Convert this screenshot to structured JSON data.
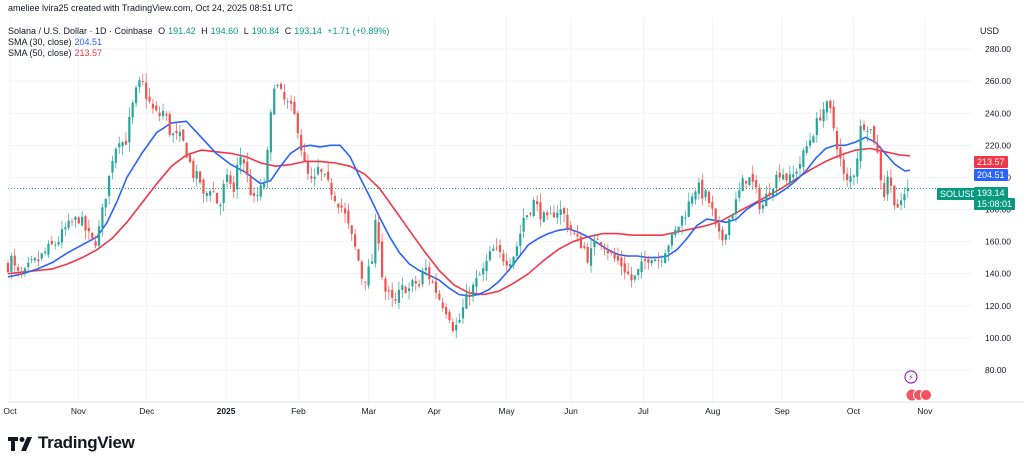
{
  "header": {
    "author_line": "ameliee lvira25 created with TradingView.com, Oct 24, 2025 08:51 UTC",
    "symbol_title": "Solana / U.S. Dollar · 1D · Coinbase",
    "ohlc": {
      "o_label": "O",
      "o": "191.42",
      "h_label": "H",
      "h": "194.60",
      "l_label": "L",
      "l": "190.84",
      "c_label": "C",
      "c": "193.14",
      "change": "+1.71 (+0.89%)"
    },
    "sma30_label": "SMA (30, close)",
    "sma30_value": "204.51",
    "sma50_label": "SMA (50, close)",
    "sma50_value": "213.57"
  },
  "price_scale": {
    "currency": "USD"
  },
  "badges": {
    "symbol": "SOLUSD",
    "price": "193.14",
    "countdown": "15:08:01",
    "sma30": "204.51",
    "sma50": "213.57"
  },
  "footer": {
    "brand": "TradingView"
  },
  "colors": {
    "up": "#26a69a",
    "down": "#ef5350",
    "sma30": "#2962ff",
    "sma50": "#f23645",
    "last": "#089981"
  },
  "chart_data": {
    "type": "candlestick",
    "title": "Solana / U.S. Dollar · 1D · Coinbase",
    "ylim": [
      60,
      300
    ],
    "y_ticks": [
      80,
      100,
      120,
      140,
      160,
      180,
      200,
      220,
      240,
      260,
      280
    ],
    "x_ticks": [
      "Oct",
      "Nov",
      "Dec",
      "2025",
      "Feb",
      "Mar",
      "Apr",
      "May",
      "Jun",
      "Jul",
      "Aug",
      "Sep",
      "Oct",
      "Nov"
    ],
    "x_tick_index": [
      2,
      71,
      140,
      220,
      293,
      364,
      430,
      503,
      568,
      641,
      711,
      781,
      853,
      925
    ],
    "close_path": [
      [
        0,
        145
      ],
      [
        4,
        150
      ],
      [
        8,
        140
      ],
      [
        15,
        138
      ],
      [
        22,
        145
      ],
      [
        30,
        148
      ],
      [
        40,
        155
      ],
      [
        50,
        160
      ],
      [
        58,
        168
      ],
      [
        66,
        172
      ],
      [
        72,
        175
      ],
      [
        80,
        165
      ],
      [
        87,
        158
      ],
      [
        93,
        170
      ],
      [
        97,
        185
      ],
      [
        102,
        200
      ],
      [
        106,
        215
      ],
      [
        112,
        225
      ],
      [
        118,
        220
      ],
      [
        124,
        240
      ],
      [
        130,
        255
      ],
      [
        135,
        260
      ],
      [
        140,
        250
      ],
      [
        146,
        242
      ],
      [
        152,
        238
      ],
      [
        158,
        242
      ],
      [
        162,
        230
      ],
      [
        168,
        225
      ],
      [
        173,
        225
      ],
      [
        178,
        220
      ],
      [
        183,
        210
      ],
      [
        188,
        200
      ],
      [
        193,
        200
      ],
      [
        198,
        185
      ],
      [
        203,
        195
      ],
      [
        208,
        190
      ],
      [
        213,
        180
      ],
      [
        218,
        195
      ],
      [
        223,
        200
      ],
      [
        228,
        190
      ],
      [
        233,
        215
      ],
      [
        238,
        210
      ],
      [
        243,
        195
      ],
      [
        248,
        185
      ],
      [
        253,
        190
      ],
      [
        258,
        195
      ],
      [
        263,
        220
      ],
      [
        268,
        260
      ],
      [
        273,
        255
      ],
      [
        278,
        248
      ],
      [
        283,
        245
      ],
      [
        288,
        240
      ],
      [
        293,
        230
      ],
      [
        298,
        210
      ],
      [
        303,
        200
      ],
      [
        308,
        195
      ],
      [
        313,
        205
      ],
      [
        318,
        200
      ],
      [
        323,
        195
      ],
      [
        328,
        190
      ],
      [
        333,
        185
      ],
      [
        338,
        180
      ],
      [
        343,
        170
      ],
      [
        348,
        160
      ],
      [
        353,
        150
      ],
      [
        358,
        135
      ],
      [
        363,
        140
      ],
      [
        368,
        150
      ],
      [
        372,
        180
      ],
      [
        376,
        145
      ],
      [
        380,
        130
      ],
      [
        385,
        125
      ],
      [
        390,
        120
      ],
      [
        395,
        128
      ],
      [
        400,
        132
      ],
      [
        405,
        130
      ],
      [
        410,
        135
      ],
      [
        415,
        132
      ],
      [
        420,
        145
      ],
      [
        425,
        138
      ],
      [
        430,
        132
      ],
      [
        435,
        125
      ],
      [
        440,
        120
      ],
      [
        445,
        115
      ],
      [
        450,
        105
      ],
      [
        455,
        110
      ],
      [
        460,
        120
      ],
      [
        465,
        128
      ],
      [
        470,
        132
      ],
      [
        475,
        138
      ],
      [
        480,
        142
      ],
      [
        485,
        150
      ],
      [
        490,
        155
      ],
      [
        495,
        152
      ],
      [
        500,
        150
      ],
      [
        505,
        148
      ],
      [
        510,
        152
      ],
      [
        515,
        160
      ],
      [
        520,
        175
      ],
      [
        525,
        178
      ],
      [
        530,
        185
      ],
      [
        535,
        180
      ],
      [
        540,
        175
      ],
      [
        545,
        172
      ],
      [
        550,
        178
      ],
      [
        555,
        180
      ],
      [
        560,
        178
      ],
      [
        565,
        170
      ],
      [
        570,
        165
      ],
      [
        575,
        160
      ],
      [
        580,
        158
      ],
      [
        585,
        150
      ],
      [
        590,
        155
      ],
      [
        595,
        163
      ],
      [
        600,
        160
      ],
      [
        605,
        155
      ],
      [
        610,
        150
      ],
      [
        615,
        148
      ],
      [
        620,
        145
      ],
      [
        625,
        140
      ],
      [
        630,
        135
      ],
      [
        635,
        140
      ],
      [
        640,
        145
      ],
      [
        645,
        150
      ],
      [
        650,
        152
      ],
      [
        655,
        148
      ],
      [
        660,
        152
      ],
      [
        665,
        158
      ],
      [
        670,
        162
      ],
      [
        675,
        168
      ],
      [
        680,
        175
      ],
      [
        685,
        180
      ],
      [
        690,
        190
      ],
      [
        695,
        195
      ],
      [
        700,
        190
      ],
      [
        705,
        188
      ],
      [
        710,
        180
      ],
      [
        715,
        165
      ],
      [
        720,
        160
      ],
      [
        725,
        170
      ],
      [
        730,
        178
      ],
      [
        735,
        185
      ],
      [
        740,
        195
      ],
      [
        745,
        200
      ],
      [
        750,
        198
      ],
      [
        755,
        190
      ],
      [
        760,
        180
      ],
      [
        765,
        188
      ],
      [
        770,
        195
      ],
      [
        775,
        200
      ],
      [
        780,
        205
      ],
      [
        785,
        200
      ],
      [
        790,
        198
      ],
      [
        795,
        205
      ],
      [
        800,
        210
      ],
      [
        805,
        218
      ],
      [
        810,
        225
      ],
      [
        815,
        232
      ],
      [
        820,
        240
      ],
      [
        825,
        245
      ],
      [
        830,
        240
      ],
      [
        835,
        225
      ],
      [
        840,
        210
      ],
      [
        845,
        195
      ],
      [
        850,
        200
      ],
      [
        855,
        205
      ],
      [
        860,
        230
      ],
      [
        865,
        235
      ],
      [
        870,
        230
      ],
      [
        875,
        222
      ],
      [
        880,
        205
      ],
      [
        883,
        182
      ],
      [
        886,
        205
      ],
      [
        890,
        195
      ],
      [
        895,
        185
      ],
      [
        900,
        180
      ],
      [
        905,
        190
      ],
      [
        909,
        193
      ]
    ],
    "sma30_path": [
      [
        0,
        138
      ],
      [
        15,
        140
      ],
      [
        30,
        143
      ],
      [
        45,
        147
      ],
      [
        60,
        153
      ],
      [
        75,
        158
      ],
      [
        90,
        163
      ],
      [
        100,
        172
      ],
      [
        110,
        185
      ],
      [
        120,
        200
      ],
      [
        135,
        215
      ],
      [
        150,
        228
      ],
      [
        165,
        234
      ],
      [
        180,
        235
      ],
      [
        195,
        225
      ],
      [
        210,
        215
      ],
      [
        225,
        208
      ],
      [
        240,
        203
      ],
      [
        255,
        196
      ],
      [
        265,
        198
      ],
      [
        275,
        207
      ],
      [
        285,
        215
      ],
      [
        295,
        219
      ],
      [
        305,
        220
      ],
      [
        315,
        219
      ],
      [
        325,
        220
      ],
      [
        335,
        220
      ],
      [
        345,
        213
      ],
      [
        355,
        200
      ],
      [
        365,
        188
      ],
      [
        375,
        175
      ],
      [
        385,
        163
      ],
      [
        395,
        153
      ],
      [
        405,
        146
      ],
      [
        415,
        142
      ],
      [
        425,
        139
      ],
      [
        435,
        136
      ],
      [
        445,
        131
      ],
      [
        455,
        127
      ],
      [
        465,
        126
      ],
      [
        475,
        127
      ],
      [
        485,
        130
      ],
      [
        495,
        135
      ],
      [
        505,
        142
      ],
      [
        515,
        150
      ],
      [
        525,
        158
      ],
      [
        535,
        162
      ],
      [
        545,
        165
      ],
      [
        555,
        167
      ],
      [
        565,
        168
      ],
      [
        575,
        166
      ],
      [
        585,
        163
      ],
      [
        595,
        159
      ],
      [
        605,
        155
      ],
      [
        615,
        152
      ],
      [
        625,
        151
      ],
      [
        635,
        151
      ],
      [
        645,
        150
      ],
      [
        655,
        150
      ],
      [
        665,
        151
      ],
      [
        675,
        155
      ],
      [
        685,
        162
      ],
      [
        695,
        170
      ],
      [
        705,
        174
      ],
      [
        715,
        173
      ],
      [
        725,
        172
      ],
      [
        735,
        174
      ],
      [
        745,
        180
      ],
      [
        755,
        184
      ],
      [
        765,
        186
      ],
      [
        775,
        189
      ],
      [
        785,
        193
      ],
      [
        795,
        198
      ],
      [
        805,
        204
      ],
      [
        815,
        212
      ],
      [
        825,
        218
      ],
      [
        835,
        220
      ],
      [
        845,
        220
      ],
      [
        855,
        222
      ],
      [
        865,
        225
      ],
      [
        875,
        222
      ],
      [
        885,
        215
      ],
      [
        895,
        208
      ],
      [
        905,
        204
      ],
      [
        910,
        204.5
      ]
    ],
    "sma50_path": [
      [
        0,
        140
      ],
      [
        15,
        141
      ],
      [
        30,
        142
      ],
      [
        45,
        143
      ],
      [
        60,
        146
      ],
      [
        75,
        150
      ],
      [
        90,
        155
      ],
      [
        105,
        162
      ],
      [
        120,
        172
      ],
      [
        135,
        184
      ],
      [
        150,
        196
      ],
      [
        165,
        207
      ],
      [
        180,
        214
      ],
      [
        195,
        217
      ],
      [
        210,
        216
      ],
      [
        225,
        215
      ],
      [
        240,
        213
      ],
      [
        255,
        209
      ],
      [
        270,
        207
      ],
      [
        285,
        208
      ],
      [
        300,
        210
      ],
      [
        315,
        210
      ],
      [
        330,
        209
      ],
      [
        345,
        207
      ],
      [
        360,
        202
      ],
      [
        375,
        193
      ],
      [
        390,
        180
      ],
      [
        405,
        167
      ],
      [
        420,
        154
      ],
      [
        435,
        142
      ],
      [
        450,
        133
      ],
      [
        465,
        128
      ],
      [
        480,
        127
      ],
      [
        495,
        129
      ],
      [
        510,
        134
      ],
      [
        525,
        140
      ],
      [
        540,
        148
      ],
      [
        555,
        155
      ],
      [
        570,
        160
      ],
      [
        585,
        163
      ],
      [
        600,
        165
      ],
      [
        615,
        165
      ],
      [
        630,
        164
      ],
      [
        645,
        164
      ],
      [
        660,
        164
      ],
      [
        675,
        166
      ],
      [
        690,
        168
      ],
      [
        705,
        170
      ],
      [
        720,
        173
      ],
      [
        735,
        178
      ],
      [
        750,
        183
      ],
      [
        765,
        188
      ],
      [
        780,
        193
      ],
      [
        795,
        199
      ],
      [
        810,
        205
      ],
      [
        825,
        210
      ],
      [
        840,
        214
      ],
      [
        855,
        217
      ],
      [
        870,
        218
      ],
      [
        885,
        216
      ],
      [
        900,
        214
      ],
      [
        910,
        213.5
      ]
    ],
    "sma30_label": "SMA (30, close)",
    "sma30_last": 204.51,
    "sma50_label": "SMA (50, close)",
    "sma50_last": 213.57,
    "last": {
      "open": 191.42,
      "high": 194.6,
      "low": 190.84,
      "close": 193.14,
      "change": 1.71,
      "change_pct": 0.89
    }
  }
}
